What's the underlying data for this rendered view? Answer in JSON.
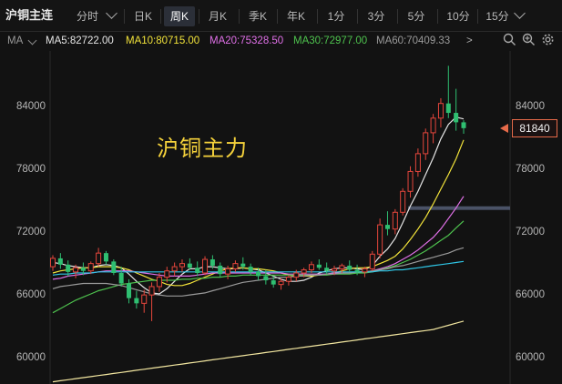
{
  "header": {
    "symbol": "沪铜主连",
    "timeframes": [
      {
        "label": "分时",
        "dropdown": true
      },
      {
        "label": "日K"
      },
      {
        "label": "周K",
        "active": true
      },
      {
        "label": "月K"
      },
      {
        "label": "季K"
      },
      {
        "label": "年K"
      },
      {
        "label": "1分"
      },
      {
        "label": "3分"
      },
      {
        "label": "5分"
      },
      {
        "label": "10分"
      },
      {
        "label": "15分",
        "dropdown": true
      }
    ]
  },
  "ma_bar": {
    "prefix": "MA",
    "items": [
      {
        "label": "MA5:82722.00",
        "color": "#e6e6e6"
      },
      {
        "label": "MA10:80715.00",
        "color": "#f2e33a"
      },
      {
        "label": "MA20:75328.50",
        "color": "#e070e8"
      },
      {
        "label": "MA30:72977.00",
        "color": "#4ec24e"
      },
      {
        "label": "MA60:70409.33",
        "color": "#9a9a9a"
      }
    ],
    "more": ">"
  },
  "toolbar_icons": [
    "search-icon",
    "zoom-in-icon",
    "settings-icon"
  ],
  "watermark": "沪铜主力",
  "last_price": "81840",
  "colors": {
    "up": "#e5463c",
    "down": "#2fbf71",
    "bg": "#121212"
  },
  "chart_data": {
    "type": "candlestick",
    "y_ticks_left": [
      "84000",
      "78000",
      "72000",
      "66000",
      "60000"
    ],
    "y_ticks_right": [
      "84000",
      "78000",
      "72000",
      "66000",
      "60000"
    ],
    "ylim": [
      58000,
      88000
    ],
    "candles": [
      [
        68600,
        69700,
        68200,
        69400
      ],
      [
        69400,
        69900,
        68400,
        68800
      ],
      [
        68800,
        69200,
        67700,
        68100
      ],
      [
        68100,
        68800,
        67500,
        68500
      ],
      [
        68500,
        69000,
        67800,
        68200
      ],
      [
        68200,
        69100,
        67900,
        68900
      ],
      [
        68900,
        70400,
        68600,
        69900
      ],
      [
        69900,
        70100,
        68800,
        69100
      ],
      [
        69100,
        69300,
        67800,
        68000
      ],
      [
        68000,
        68600,
        66700,
        67000
      ],
      [
        67000,
        67400,
        65100,
        65600
      ],
      [
        65600,
        66300,
        64600,
        65100
      ],
      [
        65100,
        66400,
        64200,
        65900
      ],
      [
        65900,
        67100,
        63400,
        66700
      ],
      [
        66700,
        68000,
        66200,
        67600
      ],
      [
        67600,
        68600,
        67100,
        68200
      ],
      [
        68200,
        69000,
        67700,
        68600
      ],
      [
        68600,
        69300,
        68100,
        68900
      ],
      [
        68900,
        69400,
        68300,
        68500
      ],
      [
        68500,
        69100,
        67700,
        68000
      ],
      [
        68000,
        69600,
        67800,
        69300
      ],
      [
        69300,
        69700,
        68400,
        68700
      ],
      [
        68700,
        69000,
        67600,
        67900
      ],
      [
        67900,
        68700,
        67400,
        68400
      ],
      [
        68400,
        69200,
        68100,
        68900
      ],
      [
        68900,
        69500,
        68300,
        68600
      ],
      [
        68600,
        68900,
        67800,
        68100
      ],
      [
        68100,
        68500,
        67300,
        67700
      ],
      [
        67700,
        68300,
        66900,
        67300
      ],
      [
        67300,
        67700,
        66600,
        66900
      ],
      [
        66900,
        67500,
        66400,
        67200
      ],
      [
        67200,
        67800,
        66800,
        67600
      ],
      [
        67600,
        68300,
        67200,
        68000
      ],
      [
        68000,
        68500,
        67600,
        68300
      ],
      [
        68300,
        69100,
        68000,
        68800
      ],
      [
        68800,
        69300,
        68300,
        68500
      ],
      [
        68500,
        69000,
        67900,
        68200
      ],
      [
        68200,
        68700,
        67800,
        68400
      ],
      [
        68400,
        68900,
        68000,
        68700
      ],
      [
        68700,
        69200,
        68100,
        68300
      ],
      [
        68300,
        68800,
        67800,
        68100
      ],
      [
        68100,
        68600,
        67600,
        68400
      ],
      [
        68400,
        70100,
        68200,
        69800
      ],
      [
        69800,
        73200,
        69400,
        72600
      ],
      [
        72600,
        73900,
        71600,
        72200
      ],
      [
        72200,
        74100,
        71700,
        73800
      ],
      [
        73800,
        76100,
        73500,
        75800
      ],
      [
        75800,
        78200,
        75200,
        77700
      ],
      [
        77700,
        79900,
        77200,
        79400
      ],
      [
        79400,
        81800,
        78800,
        81400
      ],
      [
        81400,
        83200,
        80400,
        82800
      ],
      [
        82800,
        84700,
        81900,
        84200
      ],
      [
        84200,
        87800,
        82800,
        83300
      ],
      [
        83300,
        85600,
        81600,
        82400
      ],
      [
        82400,
        82600,
        81300,
        81840
      ]
    ],
    "ma": [
      {
        "name": "MA5",
        "color": "#e6e6e6",
        "values": [
          69000,
          68900,
          68700,
          68600,
          68500,
          68500,
          68700,
          68800,
          68700,
          68500,
          67900,
          67200,
          66600,
          66100,
          66000,
          66500,
          67200,
          67900,
          68400,
          68400,
          68600,
          68600,
          68500,
          68400,
          68400,
          68500,
          68400,
          68300,
          68000,
          67700,
          67400,
          67200,
          67200,
          67300,
          67600,
          68000,
          68200,
          68400,
          68500,
          68500,
          68400,
          68300,
          68700,
          69600,
          70300,
          71300,
          72800,
          74400,
          75800,
          77400,
          79000,
          80800,
          82200,
          82900,
          82722
        ]
      },
      {
        "name": "MA10",
        "color": "#f2e33a",
        "values": [
          68000,
          68200,
          68300,
          68400,
          68500,
          68500,
          68600,
          68600,
          68600,
          68500,
          68300,
          68000,
          67700,
          67400,
          67200,
          66900,
          66800,
          66800,
          67000,
          67300,
          67600,
          67900,
          68200,
          68400,
          68500,
          68500,
          68400,
          68400,
          68300,
          68200,
          68000,
          67800,
          67700,
          67700,
          67700,
          67800,
          67900,
          68000,
          68200,
          68400,
          68500,
          68500,
          68600,
          68900,
          69200,
          69600,
          70300,
          71200,
          72200,
          73300,
          74600,
          76000,
          77400,
          78900,
          80715
        ]
      },
      {
        "name": "MA20",
        "color": "#e070e8",
        "values": [
          67400,
          67500,
          67700,
          67800,
          67900,
          68000,
          68100,
          68200,
          68200,
          68200,
          68200,
          68100,
          68000,
          67900,
          67800,
          67700,
          67700,
          67700,
          67700,
          67800,
          67900,
          68000,
          68000,
          68000,
          68000,
          68000,
          68000,
          68000,
          68000,
          68000,
          68000,
          67900,
          67900,
          67900,
          67900,
          67900,
          67900,
          68000,
          68000,
          68000,
          68100,
          68100,
          68200,
          68400,
          68600,
          68900,
          69300,
          69700,
          70200,
          70800,
          71400,
          72200,
          73200,
          74200,
          75328
        ]
      },
      {
        "name": "MA30",
        "color": "#4ec24e",
        "values": [
          64200,
          64600,
          65000,
          65400,
          65700,
          66000,
          66300,
          66500,
          66700,
          66900,
          67000,
          67100,
          67200,
          67300,
          67300,
          67300,
          67300,
          67400,
          67400,
          67500,
          67500,
          67600,
          67600,
          67700,
          67700,
          67800,
          67800,
          67800,
          67800,
          67800,
          67800,
          67800,
          67800,
          67800,
          67800,
          67800,
          67800,
          67900,
          67900,
          67900,
          68000,
          68000,
          68100,
          68300,
          68500,
          68700,
          69000,
          69300,
          69700,
          70100,
          70600,
          71100,
          71600,
          72300,
          72977
        ]
      },
      {
        "name": "MA60",
        "color": "#9a9a9a",
        "values": [
          66500,
          66700,
          66800,
          66900,
          67000,
          67000,
          67000,
          67000,
          66900,
          66800,
          66600,
          66400,
          66200,
          66000,
          65900,
          65800,
          65800,
          65800,
          65900,
          66000,
          66100,
          66300,
          66500,
          66700,
          66900,
          67100,
          67200,
          67300,
          67400,
          67500,
          67600,
          67600,
          67700,
          67700,
          67800,
          67800,
          67900,
          67900,
          68000,
          68000,
          68100,
          68100,
          68200,
          68300,
          68400,
          68600,
          68700,
          68900,
          69100,
          69300,
          69500,
          69700,
          69900,
          70200,
          70409
        ]
      },
      {
        "name": "MA120",
        "color": "#2fc6e6",
        "values": [
          67800,
          67900,
          67900,
          68000,
          68000,
          68000,
          68100,
          68100,
          68100,
          68100,
          68100,
          68100,
          68100,
          68100,
          68100,
          68100,
          68100,
          68100,
          68100,
          68100,
          68100,
          68100,
          68100,
          68100,
          68100,
          68100,
          68100,
          68100,
          68100,
          68100,
          68100,
          68100,
          68100,
          68100,
          68100,
          68100,
          68100,
          68100,
          68100,
          68100,
          68100,
          68100,
          68100,
          68200,
          68200,
          68300,
          68300,
          68400,
          68500,
          68600,
          68700,
          68800,
          68900,
          69000,
          69100
        ]
      },
      {
        "name": "MA250",
        "color": "#f2e6a0",
        "values": [
          57600,
          57700,
          57800,
          57900,
          58000,
          58100,
          58200,
          58300,
          58400,
          58500,
          58600,
          58700,
          58800,
          58900,
          59000,
          59100,
          59200,
          59300,
          59400,
          59500,
          59600,
          59700,
          59800,
          59900,
          60000,
          60100,
          60200,
          60300,
          60400,
          60500,
          60600,
          60700,
          60800,
          60900,
          61000,
          61100,
          61200,
          61300,
          61400,
          61500,
          61600,
          61700,
          61800,
          61900,
          62000,
          62100,
          62200,
          62300,
          62400,
          62500,
          62600,
          62800,
          63000,
          63200,
          63400
        ]
      }
    ],
    "reference_line": 74200
  }
}
